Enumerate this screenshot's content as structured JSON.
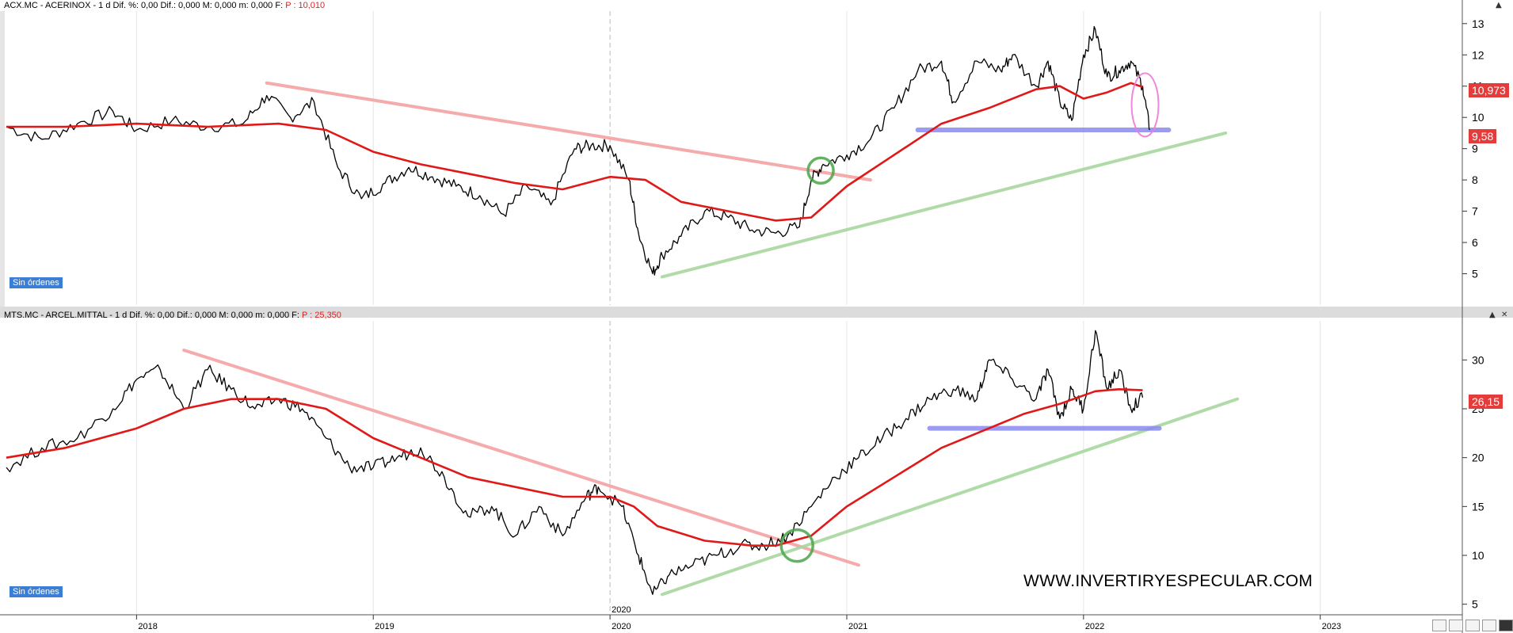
{
  "panels": [
    {
      "title": "ACX.MC - ACERINOX -  1 d  Dif. %: 0,00  Dif.: 0,000  M: 0,000  m: 0,000  F: ",
      "price_label": "P : 10,010",
      "orders_badge": "Sin órdenes",
      "last_price": "10,973",
      "second_price": "9,58"
    },
    {
      "title": "MTS.MC - ARCEL.MITTAL -  1 d  Dif. %: 0,00  Dif.: 0,000  M: 0,000  m: 0,000  F: ",
      "price_label": "P : 25,350",
      "orders_badge": "Sin órdenes",
      "last_price": "26,15"
    }
  ],
  "watermark": "WWW.INVERTIRYESPECULAR.COM",
  "colors": {
    "price": "#000000",
    "moving_average": "#e01818",
    "downtrend": "#f4a3a3",
    "uptrend": "#a8d8a0",
    "support": "#8a8af0",
    "circle_green": "#4aa54a",
    "circle_pink": "#f07ad8",
    "price_tag": "#e43b3b",
    "badge": "#3a7fd5"
  },
  "icons": [
    "panel-close-icon",
    "panel-maximize-icon",
    "zoom-icon",
    "layout-icon",
    "save-icon",
    "fullscreen-icon"
  ],
  "chart_data": [
    {
      "type": "line",
      "title": "ACX.MC - ACERINOX",
      "xlabel": "",
      "ylabel": "",
      "x_ticks": [
        "2018",
        "2019",
        "2020",
        "2021",
        "2022",
        "2023"
      ],
      "y_ticks": [
        5,
        6,
        7,
        8,
        9,
        10,
        11,
        12,
        13
      ],
      "ylim": [
        4.0,
        13.4
      ],
      "xlim": [
        2017.45,
        2023.6
      ],
      "grid": true,
      "series": [
        {
          "role": "price",
          "x": [
            2017.45,
            2017.6,
            2017.75,
            2017.9,
            2018.0,
            2018.15,
            2018.3,
            2018.45,
            2018.55,
            2018.65,
            2018.75,
            2018.85,
            2018.95,
            2019.05,
            2019.15,
            2019.25,
            2019.35,
            2019.45,
            2019.55,
            2019.65,
            2019.75,
            2019.85,
            2019.92,
            2020.0,
            2020.08,
            2020.12,
            2020.18,
            2020.22,
            2020.3,
            2020.4,
            2020.5,
            2020.6,
            2020.7,
            2020.8,
            2020.85,
            2020.9,
            2021.0,
            2021.1,
            2021.2,
            2021.3,
            2021.4,
            2021.45,
            2021.55,
            2021.65,
            2021.7,
            2021.8,
            2021.85,
            2021.9,
            2021.95,
            2022.0,
            2022.05,
            2022.1,
            2022.15,
            2022.2,
            2022.25,
            2022.28
          ],
          "y": [
            9.7,
            9.3,
            9.8,
            10.2,
            9.6,
            9.9,
            9.7,
            9.8,
            10.7,
            10.0,
            10.5,
            8.4,
            7.4,
            7.9,
            8.4,
            8.1,
            7.8,
            7.5,
            6.9,
            7.8,
            7.2,
            9.0,
            9.1,
            9.1,
            8.0,
            6.3,
            5.0,
            5.6,
            6.2,
            7.0,
            6.8,
            6.4,
            6.3,
            6.5,
            8.0,
            8.5,
            8.8,
            9.3,
            10.3,
            11.5,
            11.8,
            10.5,
            11.8,
            11.5,
            12.0,
            11.0,
            11.8,
            10.5,
            9.9,
            12.0,
            12.8,
            11.3,
            11.5,
            11.8,
            11.0,
            9.6
          ]
        },
        {
          "role": "moving_average",
          "x": [
            2017.45,
            2017.7,
            2018.0,
            2018.3,
            2018.6,
            2018.8,
            2019.0,
            2019.2,
            2019.4,
            2019.6,
            2019.8,
            2020.0,
            2020.15,
            2020.3,
            2020.5,
            2020.7,
            2020.85,
            2021.0,
            2021.2,
            2021.4,
            2021.6,
            2021.8,
            2021.9,
            2022.0,
            2022.1,
            2022.2,
            2022.25
          ],
          "y": [
            9.7,
            9.7,
            9.8,
            9.7,
            9.8,
            9.6,
            8.9,
            8.5,
            8.2,
            7.9,
            7.7,
            8.1,
            8.0,
            7.3,
            7.0,
            6.7,
            6.8,
            7.8,
            8.8,
            9.8,
            10.3,
            10.9,
            11.0,
            10.6,
            10.8,
            11.1,
            10.97
          ]
        }
      ],
      "annotations": [
        {
          "kind": "downtrend-line",
          "from": [
            2018.55,
            11.1
          ],
          "to": [
            2021.1,
            8.0
          ]
        },
        {
          "kind": "uptrend-line",
          "from": [
            2020.22,
            4.9
          ],
          "to": [
            2022.6,
            9.5
          ]
        },
        {
          "kind": "support-zone",
          "from": [
            2021.3,
            9.6
          ],
          "to": [
            2022.36,
            9.6
          ]
        },
        {
          "kind": "green-circle",
          "at": [
            2020.89,
            8.3
          ]
        },
        {
          "kind": "pink-ellipse",
          "at": [
            2022.26,
            10.4
          ]
        }
      ]
    },
    {
      "type": "line",
      "title": "MTS.MC - ARCEL.MITTAL",
      "xlabel": "",
      "ylabel": "",
      "x_ticks": [
        "2018",
        "2019",
        "2020",
        "2021",
        "2022",
        "2023"
      ],
      "y_ticks": [
        5,
        10,
        15,
        20,
        25,
        30
      ],
      "ylim": [
        4.0,
        34.0
      ],
      "xlim": [
        2017.45,
        2023.6
      ],
      "grid": true,
      "series": [
        {
          "role": "price",
          "x": [
            2017.45,
            2017.6,
            2017.75,
            2017.9,
            2018.0,
            2018.1,
            2018.2,
            2018.3,
            2018.4,
            2018.5,
            2018.6,
            2018.7,
            2018.8,
            2018.9,
            2019.0,
            2019.1,
            2019.2,
            2019.3,
            2019.4,
            2019.5,
            2019.6,
            2019.7,
            2019.8,
            2019.9,
            2019.95,
            2020.05,
            2020.12,
            2020.18,
            2020.25,
            2020.35,
            2020.45,
            2020.55,
            2020.65,
            2020.75,
            2020.85,
            2020.95,
            2021.05,
            2021.15,
            2021.25,
            2021.35,
            2021.45,
            2021.55,
            2021.6,
            2021.7,
            2021.8,
            2021.85,
            2021.9,
            2021.95,
            2022.0,
            2022.05,
            2022.1,
            2022.15,
            2022.2,
            2022.25
          ],
          "y": [
            19,
            21,
            22,
            25,
            28,
            29,
            25,
            29,
            27,
            25,
            26,
            25,
            22,
            19,
            19,
            20,
            21,
            18,
            14,
            15,
            12,
            15,
            12,
            16,
            17,
            15,
            10,
            6,
            8,
            9,
            10,
            11,
            11,
            12,
            15,
            18,
            20,
            22,
            24,
            26,
            27,
            26,
            30,
            28,
            26,
            29,
            24,
            27,
            25,
            33,
            27,
            29,
            25,
            26.15
          ]
        },
        {
          "role": "moving_average",
          "x": [
            2017.45,
            2017.7,
            2018.0,
            2018.2,
            2018.4,
            2018.6,
            2018.8,
            2019.0,
            2019.2,
            2019.4,
            2019.6,
            2019.8,
            2020.0,
            2020.1,
            2020.2,
            2020.4,
            2020.6,
            2020.7,
            2020.85,
            2021.0,
            2021.2,
            2021.4,
            2021.6,
            2021.75,
            2021.9,
            2022.05,
            2022.15,
            2022.25
          ],
          "y": [
            20,
            21,
            23,
            25,
            26,
            26,
            25,
            22,
            20,
            18,
            17,
            16,
            16,
            15,
            13,
            11.5,
            11,
            11,
            12,
            15,
            18,
            21,
            23,
            24.5,
            25.5,
            26.8,
            27,
            26.9
          ]
        }
      ],
      "annotations": [
        {
          "kind": "downtrend-line",
          "from": [
            2018.2,
            31
          ],
          "to": [
            2021.05,
            9
          ]
        },
        {
          "kind": "uptrend-line",
          "from": [
            2020.22,
            6
          ],
          "to": [
            2022.65,
            26
          ]
        },
        {
          "kind": "support-zone",
          "from": [
            2021.35,
            23
          ],
          "to": [
            2022.32,
            23
          ]
        },
        {
          "kind": "green-circle",
          "at": [
            2020.79,
            11
          ]
        }
      ]
    }
  ]
}
